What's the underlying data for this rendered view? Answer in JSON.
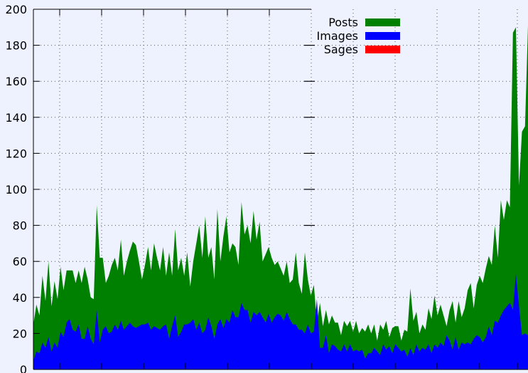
{
  "chart_data": {
    "type": "area",
    "title": "",
    "xlabel": "",
    "ylabel": "",
    "ylim": [
      0,
      200
    ],
    "y_ticks": [
      "0",
      "20",
      "40",
      "60",
      "80",
      "100",
      "120",
      "140",
      "160",
      "180",
      "200"
    ],
    "grid": true,
    "legend_position": "top-right",
    "legend": [
      {
        "name": "Posts",
        "color": "#008000"
      },
      {
        "name": "Images",
        "color": "#0000ff"
      },
      {
        "name": "Sages",
        "color": "#ff0000"
      }
    ],
    "series": [
      {
        "name": "Posts",
        "color": "#008000",
        "values": [
          25,
          36,
          30,
          52,
          38,
          60,
          35,
          49,
          39,
          57,
          44,
          55,
          55,
          55,
          48,
          55,
          48,
          57,
          50,
          40,
          39,
          91,
          62,
          62,
          48,
          52,
          58,
          62,
          55,
          72,
          52,
          60,
          66,
          71,
          69,
          60,
          50,
          58,
          68,
          55,
          70,
          62,
          55,
          68,
          52,
          65,
          52,
          78,
          55,
          62,
          52,
          65,
          46,
          60,
          70,
          80,
          62,
          85,
          62,
          68,
          50,
          89,
          60,
          74,
          85,
          65,
          70,
          68,
          58,
          93,
          75,
          80,
          70,
          88,
          72,
          82,
          60,
          64,
          68,
          62,
          58,
          60,
          56,
          52,
          60,
          48,
          50,
          65,
          48,
          42,
          65,
          50,
          41,
          47,
          26,
          37,
          24,
          33,
          25,
          30,
          26,
          26,
          19,
          27,
          24,
          27,
          21,
          27,
          20,
          23,
          21,
          25,
          20,
          25,
          16,
          25,
          22,
          27,
          18,
          23,
          24,
          24,
          16,
          22,
          21,
          45,
          27,
          32,
          20,
          25,
          22,
          34,
          28,
          41,
          30,
          36,
          30,
          24,
          33,
          38,
          26,
          38,
          29,
          34,
          44,
          48,
          34,
          47,
          52,
          48,
          56,
          63,
          58,
          80,
          62,
          94,
          83,
          94,
          90,
          187,
          190,
          102,
          132,
          135,
          191
        ]
      },
      {
        "name": "Images",
        "color": "#0000ff",
        "values": [
          5,
          10,
          9,
          15,
          12,
          18,
          10,
          15,
          12,
          21,
          18,
          26,
          28,
          22,
          21,
          25,
          17,
          17,
          24,
          17,
          14,
          33,
          15,
          22,
          24,
          20,
          21,
          25,
          22,
          27,
          22,
          24,
          26,
          24,
          23,
          24,
          25,
          25,
          26,
          22,
          24,
          23,
          22,
          24,
          25,
          17,
          24,
          30,
          18,
          21,
          25,
          25,
          26,
          28,
          22,
          26,
          20,
          22,
          29,
          24,
          17,
          25,
          28,
          23,
          28,
          26,
          33,
          29,
          29,
          37,
          33,
          33,
          26,
          32,
          30,
          32,
          29,
          26,
          31,
          26,
          29,
          31,
          30,
          27,
          32,
          28,
          25,
          25,
          22,
          22,
          20,
          25,
          20,
          21,
          39,
          12,
          12,
          19,
          9,
          14,
          13,
          11,
          10,
          14,
          10,
          14,
          10,
          11,
          10,
          11,
          6,
          9,
          9,
          12,
          10,
          8,
          14,
          11,
          13,
          9,
          14,
          12,
          10,
          11,
          7,
          12,
          8,
          14,
          10,
          12,
          11,
          14,
          9,
          14,
          12,
          15,
          13,
          19,
          16,
          11,
          18,
          11,
          15,
          14,
          15,
          14,
          17,
          19,
          18,
          15,
          18,
          24,
          19,
          27,
          26,
          30,
          33,
          35,
          37,
          33,
          53,
          35,
          19,
          20,
          19
        ]
      },
      {
        "name": "Sages",
        "color": "#ff0000",
        "values": [
          0,
          0,
          0,
          0,
          0,
          0,
          0,
          0,
          0,
          0,
          0,
          0,
          0,
          0,
          0,
          0,
          0,
          0,
          0,
          0,
          0,
          0,
          0,
          0,
          0,
          0,
          0,
          0,
          0,
          0,
          0,
          0,
          0,
          0,
          0,
          0,
          0,
          0,
          0,
          0,
          0,
          0,
          0,
          0,
          0,
          0,
          0,
          0,
          0,
          0,
          0,
          0,
          0,
          0,
          0,
          0,
          0,
          0,
          0,
          0,
          0,
          0,
          0,
          0,
          0,
          0,
          0,
          0,
          0,
          0,
          0,
          0,
          0,
          0,
          0,
          0,
          0,
          0,
          0,
          0,
          0,
          0,
          0,
          0,
          0,
          0,
          0,
          0,
          0,
          0,
          0,
          0,
          0,
          0,
          0,
          0,
          0,
          0,
          0,
          0,
          0,
          0,
          0,
          0,
          0,
          0,
          0,
          0,
          0,
          0,
          0,
          0,
          0,
          0,
          0,
          0,
          0,
          0,
          0,
          0,
          0,
          0,
          0,
          0,
          0,
          0,
          0,
          0,
          0,
          0,
          0,
          0,
          0,
          0,
          0,
          0,
          0,
          0,
          0,
          0,
          0,
          0,
          0,
          0,
          0,
          0,
          0,
          0,
          0,
          0,
          0,
          0,
          0,
          0,
          0,
          0,
          0,
          0,
          0,
          0,
          0,
          0,
          0,
          0,
          0
        ]
      }
    ]
  }
}
